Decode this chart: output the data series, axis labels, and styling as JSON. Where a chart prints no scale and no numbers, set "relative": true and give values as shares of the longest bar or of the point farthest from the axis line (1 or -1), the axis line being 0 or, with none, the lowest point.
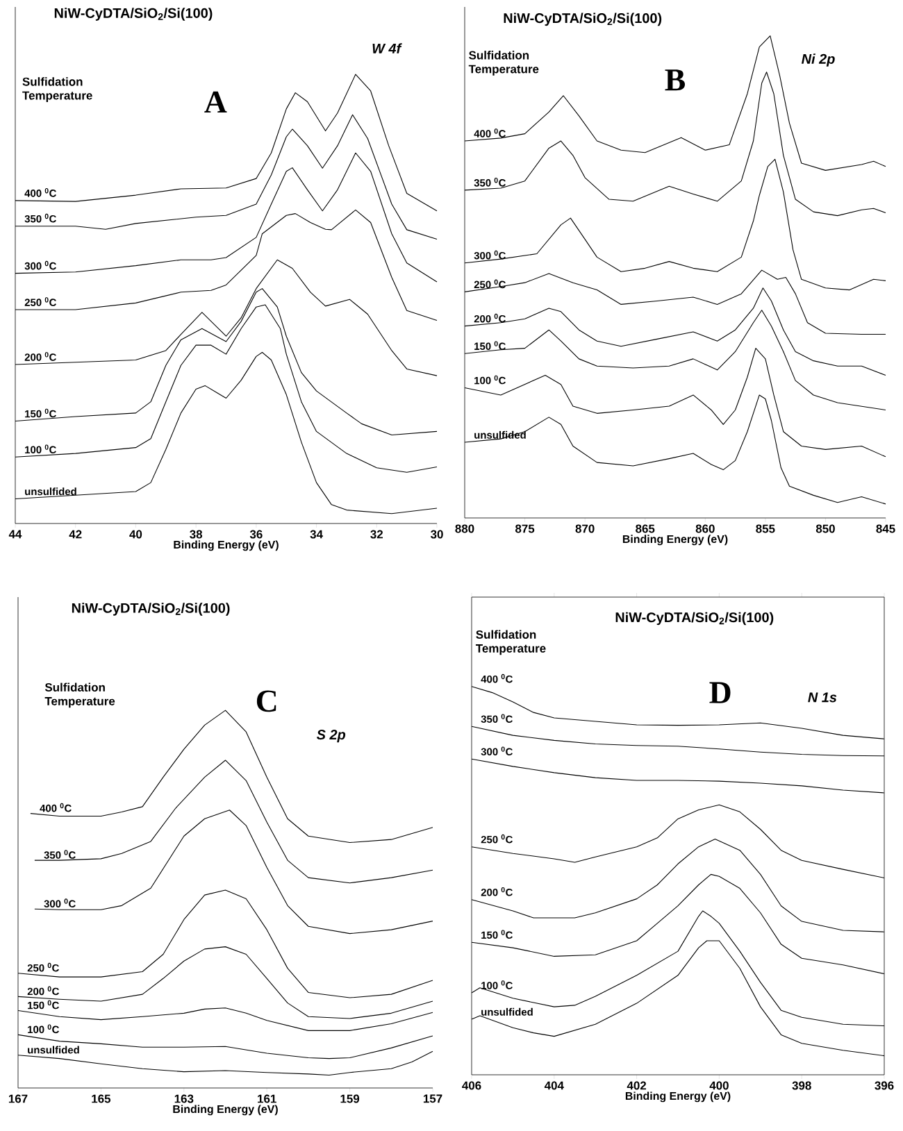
{
  "chart_data": [
    {
      "type": "line",
      "relative": true,
      "title": "NiW-CyDTA/SiO$_{2}$/Si(100)",
      "xlabel": "Binding Energy (eV)",
      "xlim": [
        44,
        30
      ],
      "xticks": [
        44,
        42,
        40,
        38,
        36,
        34,
        32,
        30
      ],
      "annotations": [
        "A",
        "W 4f",
        "Sulfidation Temperature"
      ],
      "series": [
        {
          "name": "400 $^{0}$C",
          "color": "#000000",
          "x": [
            44,
            42,
            40,
            38.5,
            37,
            36,
            35.5,
            35,
            34.7,
            34.3,
            33.7,
            33.3,
            32.7,
            32.2,
            31.6,
            31,
            30
          ],
          "values": [
            0.719,
            0.717,
            0.731,
            0.745,
            0.747,
            0.768,
            0.825,
            0.923,
            0.959,
            0.939,
            0.874,
            0.914,
            1.0,
            0.963,
            0.841,
            0.735,
            0.696
          ]
        },
        {
          "name": "350 $^{0}$C",
          "color": "#000000",
          "x": [
            44,
            42,
            41,
            40,
            38,
            37,
            36,
            35.5,
            35,
            34.8,
            34.3,
            33.8,
            33.3,
            32.8,
            32.3,
            31.5,
            31,
            30
          ],
          "values": [
            0.662,
            0.662,
            0.655,
            0.668,
            0.682,
            0.686,
            0.711,
            0.776,
            0.861,
            0.878,
            0.841,
            0.791,
            0.841,
            0.91,
            0.857,
            0.711,
            0.654,
            0.633
          ]
        },
        {
          "name": "300 $^{0}$C",
          "color": "#000000",
          "x": [
            44,
            42,
            40,
            38.5,
            37.5,
            37,
            36,
            35.5,
            35,
            34.8,
            34.3,
            33.8,
            33.3,
            32.7,
            32.2,
            31.5,
            31,
            30
          ],
          "values": [
            0.557,
            0.56,
            0.574,
            0.587,
            0.587,
            0.592,
            0.637,
            0.711,
            0.784,
            0.792,
            0.743,
            0.696,
            0.743,
            0.825,
            0.784,
            0.645,
            0.58,
            0.538
          ]
        },
        {
          "name": "250 $^{0}$C",
          "color": "#000000",
          "x": [
            44,
            42,
            40,
            38.5,
            37.5,
            37,
            36,
            35.8,
            35,
            34.7,
            34.2,
            33.7,
            33.5,
            32.7,
            32.2,
            31.5,
            31,
            30
          ],
          "values": [
            0.476,
            0.476,
            0.491,
            0.515,
            0.519,
            0.531,
            0.597,
            0.645,
            0.686,
            0.69,
            0.67,
            0.655,
            0.654,
            0.698,
            0.67,
            0.548,
            0.474,
            0.452
          ]
        },
        {
          "name": "200 $^{0}$C",
          "color": "#000000",
          "x": [
            44,
            42,
            40,
            39,
            38.5,
            37.8,
            37,
            36.5,
            36,
            35.3,
            34.8,
            34.2,
            33.7,
            32.9,
            32.3,
            31.5,
            31,
            30
          ],
          "values": [
            0.354,
            0.359,
            0.364,
            0.385,
            0.421,
            0.47,
            0.417,
            0.458,
            0.523,
            0.587,
            0.568,
            0.515,
            0.484,
            0.499,
            0.466,
            0.385,
            0.344,
            0.329
          ]
        },
        {
          "name": "150 $^{0}$C",
          "color": "#000000",
          "x": [
            44,
            42,
            40,
            39.5,
            39,
            38.5,
            37.8,
            37,
            36.5,
            36,
            35.8,
            35.3,
            35,
            34.5,
            34,
            33,
            32.5,
            31.5,
            30
          ],
          "values": [
            0.228,
            0.238,
            0.246,
            0.271,
            0.352,
            0.409,
            0.434,
            0.405,
            0.45,
            0.515,
            0.523,
            0.482,
            0.417,
            0.336,
            0.295,
            0.246,
            0.222,
            0.197,
            0.205
          ]
        },
        {
          "name": "100 $^{0}$C",
          "color": "#000000",
          "x": [
            44,
            42,
            40,
            39.5,
            39,
            38.5,
            38,
            37.5,
            37,
            36.5,
            36,
            35.7,
            35.2,
            35,
            34.5,
            34,
            33,
            32,
            31,
            30
          ],
          "values": [
            0.148,
            0.156,
            0.169,
            0.189,
            0.271,
            0.352,
            0.397,
            0.397,
            0.377,
            0.434,
            0.482,
            0.487,
            0.434,
            0.377,
            0.271,
            0.205,
            0.156,
            0.124,
            0.114,
            0.126
          ]
        },
        {
          "name": "unsulfided",
          "color": "#000000",
          "x": [
            44,
            42,
            40,
            39.5,
            39,
            38.5,
            38,
            37.7,
            37.3,
            37,
            36.5,
            36,
            35.8,
            35.5,
            35,
            34.5,
            34,
            33.5,
            33,
            31.5,
            30
          ],
          "values": [
            0.055,
            0.063,
            0.071,
            0.091,
            0.165,
            0.246,
            0.299,
            0.307,
            0.291,
            0.279,
            0.319,
            0.372,
            0.381,
            0.364,
            0.287,
            0.181,
            0.091,
            0.042,
            0.03,
            0.022,
            0.034
          ]
        }
      ]
    },
    {
      "type": "line",
      "relative": true,
      "title": "NiW-CyDTA/SiO$_{2}$/Si(100)",
      "xlabel": "Binding Energy (eV)",
      "xlim": [
        880,
        845
      ],
      "xticks": [
        880,
        875,
        870,
        865,
        860,
        855,
        850,
        845
      ],
      "annotations": [
        "B",
        "Ni 2p",
        "Sulfidation Temperature"
      ],
      "series": [
        {
          "name": "400 $^{0}$C",
          "color": "#000000",
          "x": [
            880,
            877,
            875,
            873,
            871.8,
            870.5,
            869,
            867,
            865,
            862,
            860,
            858,
            856.5,
            855.5,
            854.6,
            853.8,
            853,
            852,
            850,
            847,
            846,
            845
          ],
          "values": [
            0.782,
            0.788,
            0.797,
            0.842,
            0.876,
            0.834,
            0.782,
            0.763,
            0.758,
            0.789,
            0.763,
            0.774,
            0.88,
            0.977,
            1.0,
            0.917,
            0.819,
            0.736,
            0.721,
            0.733,
            0.74,
            0.729
          ]
        },
        {
          "name": "350 $^{0}$C",
          "color": "#000000",
          "x": [
            880,
            877,
            875,
            873,
            872,
            871,
            870,
            868,
            866,
            863,
            861,
            859,
            857,
            856,
            855.3,
            854.9,
            854.3,
            853.5,
            852.5,
            851,
            849,
            847,
            846,
            845
          ],
          "values": [
            0.68,
            0.684,
            0.699,
            0.767,
            0.782,
            0.752,
            0.706,
            0.661,
            0.657,
            0.688,
            0.672,
            0.657,
            0.699,
            0.782,
            0.902,
            0.925,
            0.88,
            0.752,
            0.661,
            0.635,
            0.627,
            0.639,
            0.642,
            0.633
          ]
        },
        {
          "name": "300 $^{0}$C",
          "color": "#000000",
          "x": [
            880,
            877,
            874,
            872,
            871.2,
            870,
            869,
            867,
            865,
            863,
            861,
            859,
            857,
            856,
            855.5,
            854.8,
            854.2,
            853.5,
            852.7,
            852,
            850,
            848,
            846,
            845
          ],
          "values": [
            0.529,
            0.537,
            0.548,
            0.608,
            0.622,
            0.578,
            0.541,
            0.511,
            0.518,
            0.532,
            0.518,
            0.511,
            0.541,
            0.616,
            0.669,
            0.729,
            0.744,
            0.676,
            0.556,
            0.495,
            0.477,
            0.473,
            0.495,
            0.492
          ]
        },
        {
          "name": "250 $^{0}$C",
          "color": "#000000",
          "x": [
            880,
            877,
            875,
            873,
            871,
            869,
            867,
            864,
            861,
            859,
            857,
            855.3,
            854,
            853.3,
            852.5,
            851.5,
            850,
            847,
            845
          ],
          "values": [
            0.469,
            0.48,
            0.488,
            0.507,
            0.488,
            0.473,
            0.443,
            0.45,
            0.458,
            0.443,
            0.465,
            0.514,
            0.495,
            0.499,
            0.465,
            0.405,
            0.383,
            0.381,
            0.381
          ]
        },
        {
          "name": "200 $^{0}$C",
          "color": "#000000",
          "x": [
            880,
            877,
            875,
            873,
            872,
            870.5,
            869,
            867,
            864,
            861,
            859,
            857.5,
            856,
            855.2,
            854.5,
            853.5,
            852.5,
            851,
            849,
            847,
            845
          ],
          "values": [
            0.398,
            0.405,
            0.413,
            0.435,
            0.428,
            0.39,
            0.367,
            0.356,
            0.371,
            0.386,
            0.367,
            0.39,
            0.435,
            0.477,
            0.45,
            0.39,
            0.345,
            0.326,
            0.315,
            0.315,
            0.296
          ]
        },
        {
          "name": "150 $^{0}$C",
          "color": "#000000",
          "x": [
            880,
            877,
            875,
            873,
            872,
            870.5,
            869,
            866,
            863,
            861,
            859,
            857.5,
            856,
            855.3,
            854.5,
            853.5,
            852.5,
            851,
            849,
            845
          ],
          "values": [
            0.341,
            0.349,
            0.352,
            0.39,
            0.367,
            0.33,
            0.315,
            0.311,
            0.315,
            0.33,
            0.307,
            0.345,
            0.405,
            0.431,
            0.398,
            0.345,
            0.285,
            0.255,
            0.239,
            0.224
          ]
        },
        {
          "name": "100 $^{0}$C",
          "color": "#000000",
          "x": [
            880,
            877,
            873.3,
            872,
            871,
            869,
            866,
            863,
            861,
            859.5,
            858.5,
            857.5,
            856.5,
            855.8,
            855,
            854.3,
            853.5,
            852,
            850,
            847,
            845
          ],
          "values": [
            0.27,
            0.255,
            0.296,
            0.277,
            0.232,
            0.217,
            0.224,
            0.232,
            0.255,
            0.224,
            0.194,
            0.224,
            0.292,
            0.352,
            0.33,
            0.255,
            0.179,
            0.149,
            0.142,
            0.149,
            0.127
          ]
        },
        {
          "name": "unsulfided",
          "color": "#000000",
          "x": [
            880,
            877,
            875,
            873,
            872,
            871,
            869,
            866,
            863,
            861,
            859.5,
            858.5,
            857.5,
            856.5,
            855.5,
            855,
            854.5,
            853.7,
            853,
            851,
            849,
            847,
            845
          ],
          "values": [
            0.157,
            0.164,
            0.179,
            0.209,
            0.194,
            0.149,
            0.115,
            0.108,
            0.123,
            0.134,
            0.111,
            0.1,
            0.119,
            0.179,
            0.255,
            0.247,
            0.202,
            0.104,
            0.066,
            0.047,
            0.032,
            0.044,
            0.029
          ]
        }
      ]
    },
    {
      "type": "line",
      "relative": true,
      "title": "NiW-CyDTA/SiO$_{2}$/Si(100)",
      "xlabel": "Binding Energy (eV)",
      "xlim": [
        167,
        157
      ],
      "xticks": [
        167,
        165,
        163,
        161,
        159,
        157
      ],
      "annotations": [
        "C",
        "S 2p",
        "Sulfidation Temperature"
      ],
      "series": [
        {
          "name": "400 $^{0}$C",
          "color": "#000000",
          "x": [
            166.7,
            166,
            165,
            164.5,
            164,
            163.5,
            163,
            162.5,
            162,
            161.5,
            161,
            160.5,
            160,
            159,
            158,
            157
          ],
          "values": [
            0.727,
            0.72,
            0.72,
            0.731,
            0.745,
            0.823,
            0.897,
            0.961,
            1.0,
            0.943,
            0.823,
            0.713,
            0.667,
            0.65,
            0.658,
            0.69
          ]
        },
        {
          "name": "350 $^{0}$C",
          "color": "#000000",
          "x": [
            166.6,
            166,
            165,
            164.5,
            163.8,
            163.2,
            162.5,
            162,
            161.5,
            161,
            160.5,
            160,
            159,
            158,
            157
          ],
          "values": [
            0.603,
            0.603,
            0.607,
            0.621,
            0.653,
            0.741,
            0.823,
            0.868,
            0.814,
            0.704,
            0.603,
            0.557,
            0.543,
            0.557,
            0.577
          ]
        },
        {
          "name": "300 $^{0}$C",
          "color": "#000000",
          "x": [
            166.6,
            166,
            165,
            164.5,
            163.8,
            163,
            162.5,
            161.9,
            161.5,
            161,
            160.5,
            160,
            159,
            158,
            157
          ],
          "values": [
            0.474,
            0.472,
            0.472,
            0.483,
            0.529,
            0.667,
            0.713,
            0.736,
            0.695,
            0.584,
            0.483,
            0.428,
            0.409,
            0.419,
            0.442
          ]
        },
        {
          "name": "250 $^{0}$C",
          "color": "#000000",
          "x": [
            167,
            166,
            165,
            164,
            163.5,
            163,
            162.5,
            162,
            161.5,
            161,
            160.5,
            160,
            159,
            158,
            157
          ],
          "values": [
            0.304,
            0.294,
            0.294,
            0.308,
            0.354,
            0.446,
            0.511,
            0.524,
            0.501,
            0.419,
            0.317,
            0.253,
            0.239,
            0.248,
            0.285
          ]
        },
        {
          "name": "200 $^{0}$C",
          "color": "#000000",
          "x": [
            167,
            166,
            165,
            164,
            163.5,
            163,
            162.5,
            162,
            161.5,
            161,
            160.5,
            160,
            159,
            158,
            157
          ],
          "values": [
            0.242,
            0.235,
            0.23,
            0.248,
            0.29,
            0.336,
            0.368,
            0.374,
            0.354,
            0.29,
            0.225,
            0.189,
            0.184,
            0.198,
            0.23
          ]
        },
        {
          "name": "150 $^{0}$C",
          "color": "#000000",
          "x": [
            167,
            166,
            165,
            164,
            163,
            162.5,
            162,
            161.5,
            161,
            160,
            159,
            158,
            157
          ],
          "values": [
            0.205,
            0.189,
            0.181,
            0.189,
            0.198,
            0.209,
            0.212,
            0.198,
            0.179,
            0.152,
            0.152,
            0.17,
            0.2
          ]
        },
        {
          "name": "100 $^{0}$C",
          "color": "#000000",
          "x": [
            167,
            166,
            165,
            164,
            163,
            162,
            161,
            160,
            159.5,
            159,
            158,
            157
          ],
          "values": [
            0.141,
            0.124,
            0.117,
            0.108,
            0.108,
            0.11,
            0.092,
            0.08,
            0.078,
            0.08,
            0.106,
            0.138
          ]
        },
        {
          "name": "unsulfided",
          "color": "#000000",
          "x": [
            167,
            166,
            165,
            164,
            163,
            162,
            161,
            160,
            159.5,
            159,
            158,
            157.5,
            157
          ],
          "values": [
            0.087,
            0.078,
            0.064,
            0.051,
            0.043,
            0.046,
            0.041,
            0.037,
            0.034,
            0.041,
            0.051,
            0.069,
            0.097
          ]
        }
      ]
    },
    {
      "type": "line",
      "relative": true,
      "title": "NiW-CyDTA/SiO$_{2}$/Si(100)",
      "xlabel": "Binding Energy (eV)",
      "xlim": [
        406,
        396
      ],
      "xticks": [
        406,
        404,
        402,
        400,
        398,
        396
      ],
      "annotations": [
        "D",
        "N 1s",
        "Sulfidation Temperature"
      ],
      "series": [
        {
          "name": "400 $^{0}$C",
          "color": "#000000",
          "x": [
            406,
            405.5,
            405,
            404.5,
            404,
            403,
            402,
            401,
            400,
            399,
            398,
            397,
            396
          ],
          "values": [
            1.0,
            0.984,
            0.96,
            0.933,
            0.919,
            0.91,
            0.901,
            0.9,
            0.901,
            0.906,
            0.892,
            0.874,
            0.865
          ]
        },
        {
          "name": "350 $^{0}$C",
          "color": "#000000",
          "x": [
            406,
            405,
            404,
            403,
            402,
            401,
            400,
            399,
            398,
            397,
            396
          ],
          "values": [
            0.897,
            0.874,
            0.861,
            0.852,
            0.848,
            0.846,
            0.839,
            0.831,
            0.825,
            0.822,
            0.821
          ]
        },
        {
          "name": "300 $^{0}$C",
          "color": "#000000",
          "x": [
            406,
            405,
            404,
            403,
            402,
            401,
            400,
            399,
            398,
            397,
            396
          ],
          "values": [
            0.813,
            0.794,
            0.778,
            0.765,
            0.758,
            0.758,
            0.756,
            0.751,
            0.744,
            0.733,
            0.726
          ]
        },
        {
          "name": "250 $^{0}$C",
          "color": "#000000",
          "x": [
            406,
            405,
            404,
            403.5,
            403,
            402,
            401.5,
            401,
            400.5,
            400,
            399.5,
            399,
            398.5,
            398,
            397,
            396
          ],
          "values": [
            0.587,
            0.57,
            0.556,
            0.547,
            0.561,
            0.587,
            0.61,
            0.659,
            0.682,
            0.695,
            0.677,
            0.632,
            0.578,
            0.552,
            0.529,
            0.507
          ]
        },
        {
          "name": "200 $^{0}$C",
          "color": "#000000",
          "x": [
            406,
            405,
            404.5,
            403.5,
            403,
            402,
            401.5,
            401,
            400.5,
            400.1,
            399.5,
            399,
            398.5,
            398,
            397,
            396
          ],
          "values": [
            0.451,
            0.422,
            0.404,
            0.404,
            0.417,
            0.453,
            0.489,
            0.543,
            0.587,
            0.607,
            0.578,
            0.516,
            0.435,
            0.395,
            0.372,
            0.368
          ]
        },
        {
          "name": "150 $^{0}$C",
          "color": "#000000",
          "x": [
            406,
            405,
            404,
            403,
            402,
            401.5,
            401,
            400.5,
            400.2,
            400,
            399.5,
            399,
            398.5,
            398,
            397,
            396
          ],
          "values": [
            0.341,
            0.327,
            0.305,
            0.309,
            0.345,
            0.39,
            0.435,
            0.489,
            0.516,
            0.511,
            0.48,
            0.417,
            0.336,
            0.3,
            0.283,
            0.26
          ]
        },
        {
          "name": "100 $^{0}$C",
          "color": "#000000",
          "x": [
            406,
            405.8,
            405,
            404,
            403.5,
            403,
            402,
            401,
            400.5,
            400.4,
            400.2,
            400,
            399.5,
            399,
            398.5,
            398,
            397,
            396
          ],
          "values": [
            0.211,
            0.224,
            0.197,
            0.175,
            0.179,
            0.202,
            0.256,
            0.318,
            0.408,
            0.422,
            0.408,
            0.39,
            0.318,
            0.238,
            0.166,
            0.148,
            0.13,
            0.126
          ]
        },
        {
          "name": "unsulfided",
          "color": "#000000",
          "x": [
            406,
            405.8,
            405,
            404.5,
            404,
            403,
            402,
            401,
            400.5,
            400.3,
            400,
            399.5,
            399,
            398.5,
            398,
            397,
            396
          ],
          "values": [
            0.143,
            0.152,
            0.121,
            0.108,
            0.099,
            0.13,
            0.184,
            0.256,
            0.327,
            0.345,
            0.345,
            0.274,
            0.175,
            0.103,
            0.081,
            0.063,
            0.049
          ]
        }
      ]
    }
  ]
}
